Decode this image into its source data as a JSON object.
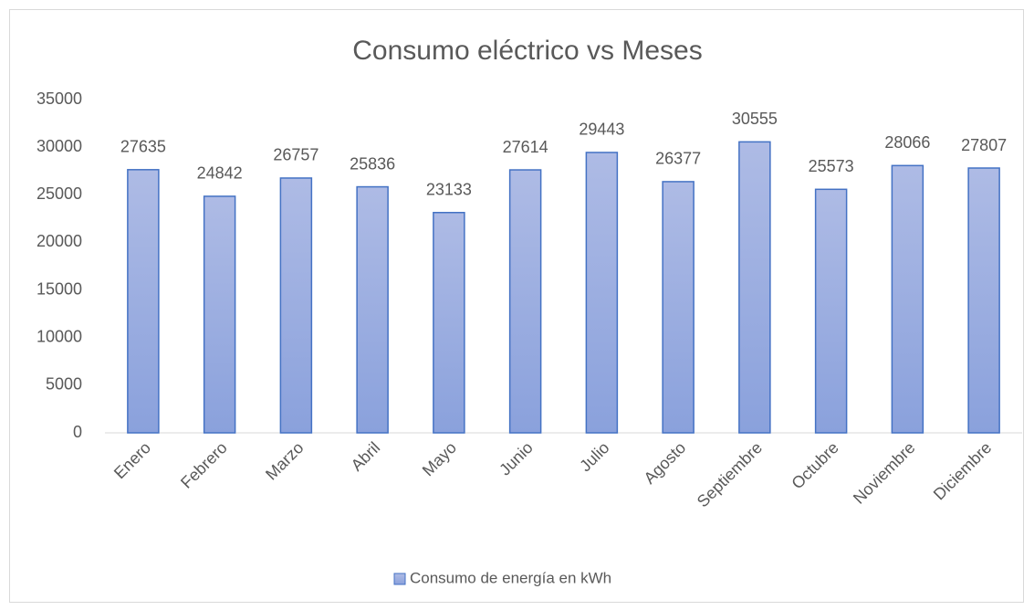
{
  "chart_data": {
    "type": "bar",
    "title": "Consumo eléctrico vs Meses",
    "categories": [
      "Enero",
      "Febrero",
      "Marzo",
      "Abril",
      "Mayo",
      "Junio",
      "Julio",
      "Agosto",
      "Septiembre",
      "Octubre",
      "Noviembre",
      "Diciembre"
    ],
    "series": [
      {
        "name": "Consumo de energía en kWh",
        "color": "#4472c4",
        "values": [
          27635,
          24842,
          26757,
          25836,
          23133,
          27614,
          29443,
          26377,
          30555,
          25573,
          28066,
          27807
        ]
      }
    ],
    "ylim": [
      0,
      35000
    ],
    "yticks": [
      0,
      5000,
      10000,
      15000,
      20000,
      25000,
      30000,
      35000
    ],
    "grid": false,
    "legend": "bottom",
    "data_labels": true
  }
}
